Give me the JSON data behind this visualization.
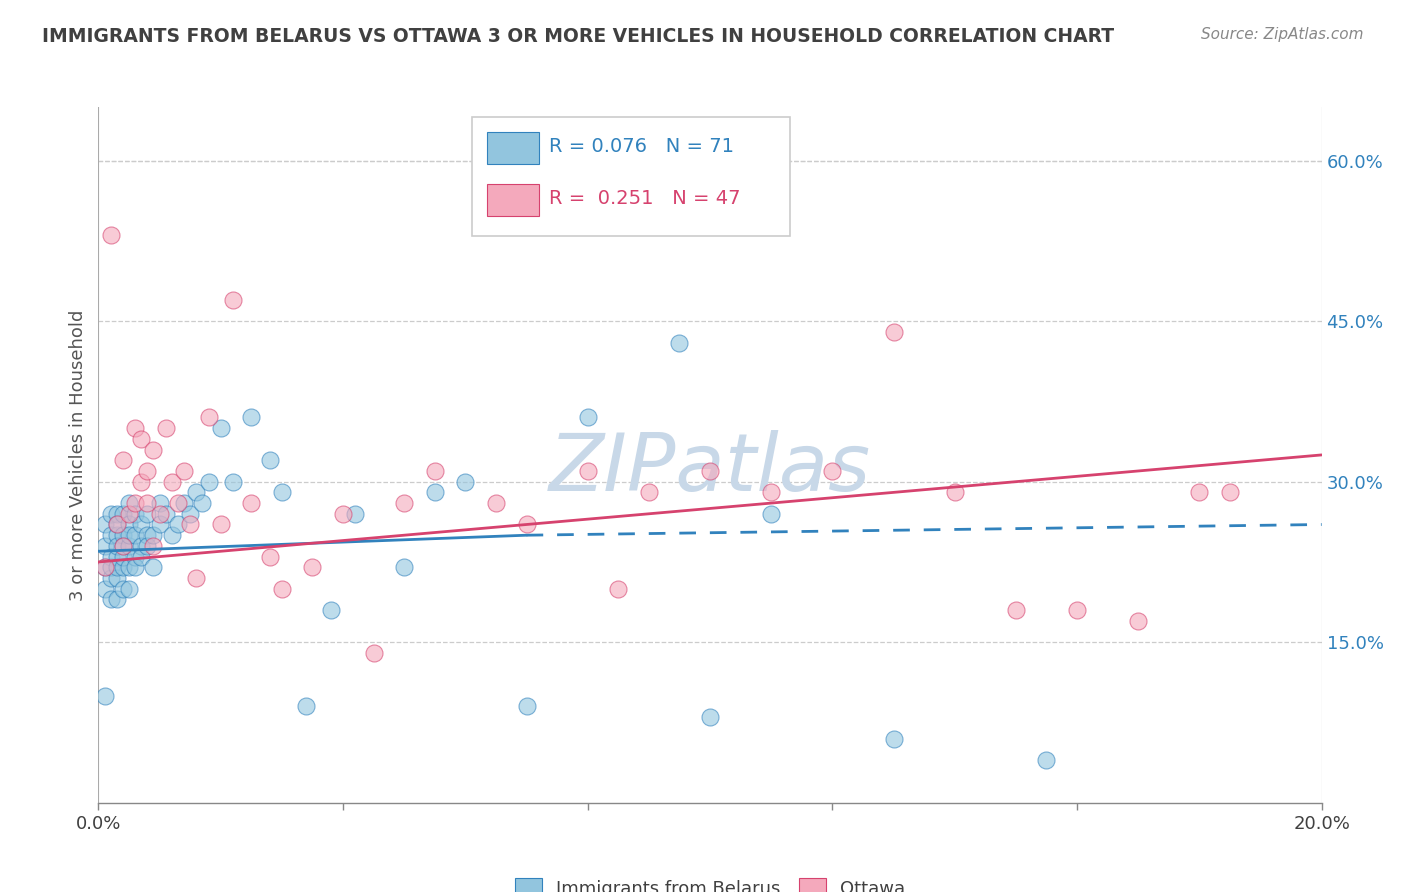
{
  "title": "IMMIGRANTS FROM BELARUS VS OTTAWA 3 OR MORE VEHICLES IN HOUSEHOLD CORRELATION CHART",
  "source": "Source: ZipAtlas.com",
  "ylabel": "3 or more Vehicles in Household",
  "watermark": "ZIPatlas",
  "xlim": [
    0.0,
    0.2
  ],
  "ylim": [
    0.0,
    0.65
  ],
  "y_ticks_right": [
    0.15,
    0.3,
    0.45,
    0.6
  ],
  "y_tick_labels_right": [
    "15.0%",
    "30.0%",
    "45.0%",
    "60.0%"
  ],
  "legend_labels": [
    "Immigrants from Belarus",
    "Ottawa"
  ],
  "legend_R": [
    0.076,
    0.251
  ],
  "legend_N": [
    71,
    47
  ],
  "blue_color": "#92c5de",
  "pink_color": "#f4a9bc",
  "blue_line_color": "#3182bd",
  "pink_line_color": "#d6426e",
  "blue_scatter_x": [
    0.001,
    0.001,
    0.001,
    0.001,
    0.001,
    0.002,
    0.002,
    0.002,
    0.002,
    0.002,
    0.002,
    0.003,
    0.003,
    0.003,
    0.003,
    0.003,
    0.003,
    0.003,
    0.003,
    0.004,
    0.004,
    0.004,
    0.004,
    0.004,
    0.004,
    0.005,
    0.005,
    0.005,
    0.005,
    0.005,
    0.005,
    0.006,
    0.006,
    0.006,
    0.006,
    0.007,
    0.007,
    0.007,
    0.008,
    0.008,
    0.008,
    0.009,
    0.009,
    0.01,
    0.01,
    0.011,
    0.012,
    0.013,
    0.014,
    0.015,
    0.016,
    0.017,
    0.018,
    0.02,
    0.022,
    0.025,
    0.028,
    0.03,
    0.034,
    0.038,
    0.042,
    0.05,
    0.055,
    0.06,
    0.07,
    0.08,
    0.095,
    0.1,
    0.11,
    0.13,
    0.155
  ],
  "blue_scatter_y": [
    0.2,
    0.22,
    0.24,
    0.26,
    0.1,
    0.21,
    0.23,
    0.25,
    0.27,
    0.22,
    0.19,
    0.21,
    0.23,
    0.25,
    0.27,
    0.22,
    0.24,
    0.26,
    0.19,
    0.22,
    0.25,
    0.27,
    0.24,
    0.2,
    0.23,
    0.24,
    0.26,
    0.28,
    0.22,
    0.2,
    0.25,
    0.23,
    0.25,
    0.27,
    0.22,
    0.24,
    0.26,
    0.23,
    0.25,
    0.27,
    0.24,
    0.25,
    0.22,
    0.26,
    0.28,
    0.27,
    0.25,
    0.26,
    0.28,
    0.27,
    0.29,
    0.28,
    0.3,
    0.35,
    0.3,
    0.36,
    0.32,
    0.29,
    0.09,
    0.18,
    0.27,
    0.22,
    0.29,
    0.3,
    0.09,
    0.36,
    0.43,
    0.08,
    0.27,
    0.06,
    0.04
  ],
  "pink_scatter_x": [
    0.001,
    0.002,
    0.003,
    0.004,
    0.004,
    0.005,
    0.006,
    0.006,
    0.007,
    0.007,
    0.008,
    0.008,
    0.009,
    0.009,
    0.01,
    0.011,
    0.012,
    0.013,
    0.014,
    0.015,
    0.016,
    0.018,
    0.02,
    0.022,
    0.025,
    0.028,
    0.03,
    0.035,
    0.04,
    0.045,
    0.05,
    0.055,
    0.065,
    0.07,
    0.08,
    0.085,
    0.09,
    0.1,
    0.11,
    0.12,
    0.13,
    0.14,
    0.15,
    0.16,
    0.17,
    0.18,
    0.185
  ],
  "pink_scatter_y": [
    0.22,
    0.53,
    0.26,
    0.24,
    0.32,
    0.27,
    0.35,
    0.28,
    0.3,
    0.34,
    0.28,
    0.31,
    0.24,
    0.33,
    0.27,
    0.35,
    0.3,
    0.28,
    0.31,
    0.26,
    0.21,
    0.36,
    0.26,
    0.47,
    0.28,
    0.23,
    0.2,
    0.22,
    0.27,
    0.14,
    0.28,
    0.31,
    0.28,
    0.26,
    0.31,
    0.2,
    0.29,
    0.31,
    0.29,
    0.31,
    0.44,
    0.29,
    0.18,
    0.18,
    0.17,
    0.29,
    0.29
  ],
  "blue_trend_x0": 0.0,
  "blue_trend_x1": 0.07,
  "blue_trend_x_dash0": 0.07,
  "blue_trend_x_dash1": 0.2,
  "blue_trend_y0": 0.235,
  "blue_trend_y1": 0.25,
  "blue_trend_yd0": 0.25,
  "blue_trend_yd1": 0.26,
  "pink_trend_x0": 0.0,
  "pink_trend_x1": 0.2,
  "pink_trend_y0": 0.225,
  "pink_trend_y1": 0.325,
  "legend_blue_text_color": "#3182bd",
  "legend_pink_text_color": "#d6426e",
  "title_color": "#404040",
  "watermark_color": "#c8d8e8",
  "background_color": "#ffffff",
  "grid_color": "#cccccc"
}
